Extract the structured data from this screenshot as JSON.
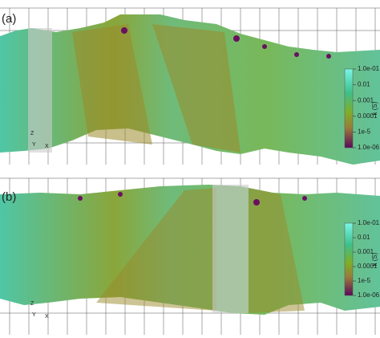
{
  "panels": [
    {
      "label": "(a)",
      "triad": [
        "Z",
        "Y",
        "X"
      ],
      "colorbar": {
        "title": "k (S)",
        "log": true,
        "lim": [
          1e-06,
          0.1
        ],
        "ticks": [
          {
            "value": 0.1,
            "label": "1.0e-01"
          },
          0.01,
          0.001,
          0.0001,
          {
            "value": 1e-05,
            "label": "1e-5"
          },
          {
            "value": 1e-06,
            "label": "1.0e-06"
          }
        ]
      }
    },
    {
      "label": "(b)",
      "triad": [
        "Z",
        "Y",
        "X"
      ],
      "colorbar": {
        "title": "k (S)",
        "log": true,
        "lim": [
          1e-06,
          0.1
        ],
        "ticks": [
          {
            "value": 0.1,
            "label": "1.0e-01"
          },
          0.01,
          0.001,
          0.0001,
          {
            "value": 1e-05,
            "label": "1e-5"
          },
          {
            "value": 1e-06,
            "label": "1.0e-06"
          }
        ]
      }
    }
  ]
}
